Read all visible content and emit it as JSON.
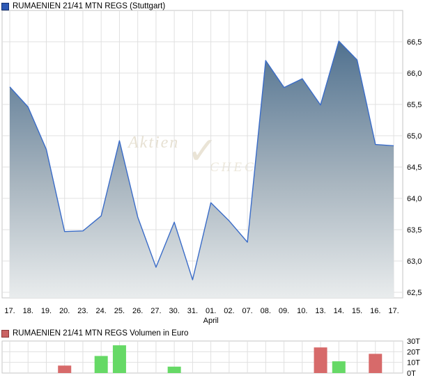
{
  "price_chart_header": {
    "title": "RUMAENIEN 21/41 MTN REGS (Stuttgart)",
    "legend_color": "#2d59b5",
    "legend_border": "#14306e"
  },
  "volume_chart_header": {
    "title": "RUMAENIEN 21/41 MTN REGS Volumen in Euro",
    "legend_color": "#ca6363",
    "legend_border": "#8c3a3a"
  },
  "watermark": {
    "text_top": "Aktien",
    "check_glyph": "✓",
    "text_bottom": "CHECK"
  },
  "chart_data": [
    {
      "type": "area",
      "title": "RUMAENIEN 21/41 MTN REGS (Stuttgart)",
      "categories": [
        "17.",
        "18.",
        "19.",
        "20.",
        "23.",
        "24.",
        "25.",
        "26.",
        "27.",
        "30.",
        "31.",
        "01.",
        "02.",
        "07.",
        "08.",
        "09.",
        "10.",
        "13.",
        "14.",
        "15.",
        "16.",
        "17."
      ],
      "values": [
        65.78,
        65.46,
        64.78,
        63.47,
        63.48,
        63.72,
        64.92,
        63.7,
        62.9,
        63.62,
        62.7,
        63.93,
        63.64,
        63.3,
        66.2,
        65.77,
        65.91,
        65.49,
        66.51,
        66.21,
        64.86,
        64.84
      ],
      "x_month_label": {
        "label": "April",
        "index": 11
      },
      "y_ticks": [
        {
          "label": "66,5",
          "value": 66.5
        },
        {
          "label": "66,0",
          "value": 66.0
        },
        {
          "label": "65,5",
          "value": 65.5
        },
        {
          "label": "65,0",
          "value": 65.0
        },
        {
          "label": "64,5",
          "value": 64.5
        },
        {
          "label": "64,0",
          "value": 64.0
        },
        {
          "label": "63,5",
          "value": 63.5
        },
        {
          "label": "63,0",
          "value": 63.0
        },
        {
          "label": "62,5",
          "value": 62.5
        }
      ],
      "ylim": [
        62.4,
        67.0
      ],
      "grid": true,
      "legend_position": "top-left",
      "line_color": "#3a6cc8",
      "area_gradient": [
        "#50718f",
        "#a8b5bf",
        "#e9eced"
      ]
    },
    {
      "type": "bar",
      "title": "RUMAENIEN 21/41 MTN REGS Volumen in Euro",
      "categories": [
        "17.",
        "18.",
        "19.",
        "20.",
        "23.",
        "24.",
        "25.",
        "26.",
        "27.",
        "30.",
        "31.",
        "01.",
        "02.",
        "07.",
        "08.",
        "09.",
        "10.",
        "13.",
        "14.",
        "15.",
        "16.",
        "17."
      ],
      "values_thousands": [
        0,
        0,
        0,
        7,
        0,
        16,
        26,
        0,
        0,
        6,
        0,
        0,
        0,
        0,
        0,
        0,
        0,
        24,
        11,
        0,
        18,
        0
      ],
      "directions": [
        "",
        "",
        "",
        "down",
        "",
        "up",
        "up",
        "",
        "",
        "up",
        "",
        "",
        "",
        "",
        "",
        "",
        "",
        "down",
        "up",
        "",
        "down",
        ""
      ],
      "bar_colors_by_direction": {
        "up": "#66d966",
        "down": "#d76a6a"
      },
      "y_ticks": [
        {
          "label": "30T",
          "value": 30
        },
        {
          "label": "20T",
          "value": 20
        },
        {
          "label": "10T",
          "value": 10
        },
        {
          "label": "0T",
          "value": 0
        }
      ],
      "ylim": [
        0,
        30
      ],
      "grid": true
    }
  ]
}
